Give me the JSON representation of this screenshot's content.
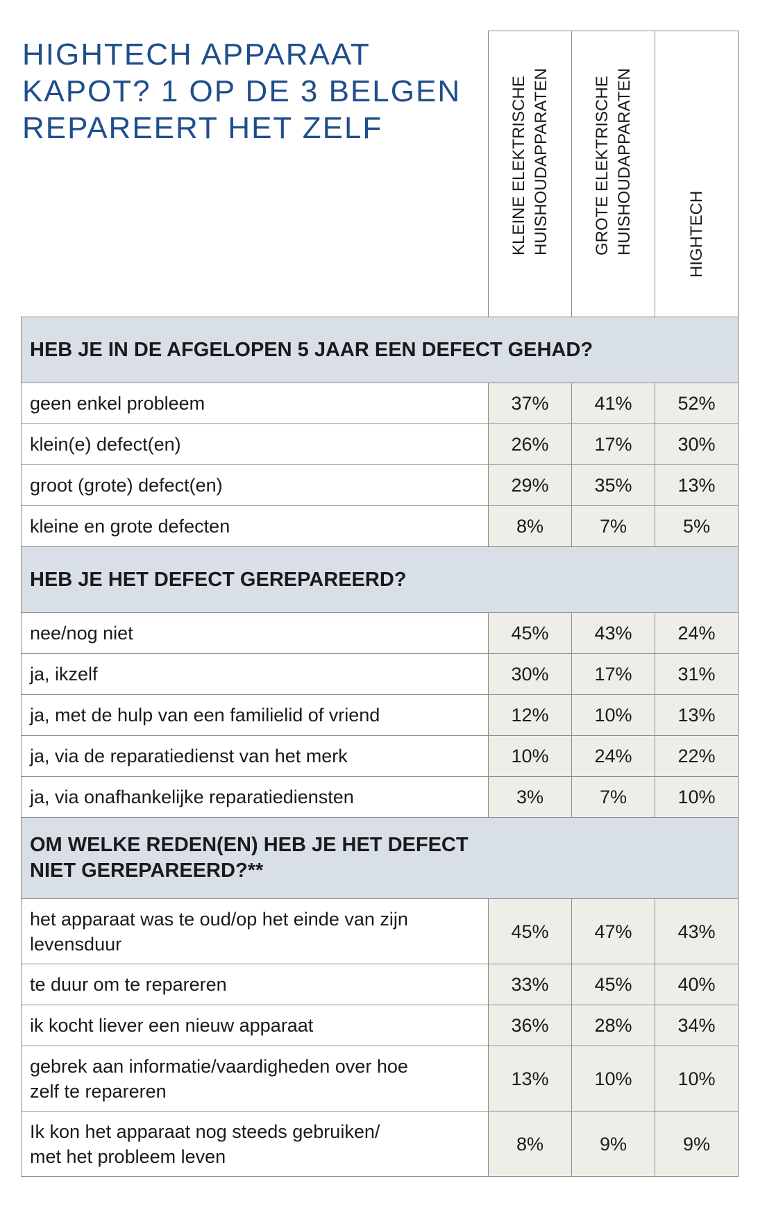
{
  "title_lines": [
    "HIGHTECH APPARAAT",
    "KAPOT? 1 OP DE 3 BELGEN",
    "REPAREERT HET ZELF"
  ],
  "columns": [
    {
      "lines": [
        "KLEINE ELEKTRISCHE",
        "HUISHOUDAPPARATEN"
      ]
    },
    {
      "lines": [
        "GROTE ELEKTRISCHE",
        "HUISHOUDAPPARATEN"
      ]
    },
    {
      "lines": [
        "HIGHTECH"
      ]
    }
  ],
  "sections": [
    {
      "title": "HEB JE IN DE AFGELOPEN 5 JAAR EEN DEFECT GEHAD?",
      "rows": [
        {
          "label": "geen enkel probleem",
          "values": [
            "37%",
            "41%",
            "52%"
          ]
        },
        {
          "label": "klein(e) defect(en)",
          "values": [
            "26%",
            "17%",
            "30%"
          ]
        },
        {
          "label": "groot (grote) defect(en)",
          "values": [
            "29%",
            "35%",
            "13%"
          ]
        },
        {
          "label": "kleine en grote defecten",
          "values": [
            "8%",
            "7%",
            "5%"
          ]
        }
      ]
    },
    {
      "title": "HEB JE HET DEFECT GEREPAREERD?",
      "rows": [
        {
          "label": "nee/nog niet",
          "values": [
            "45%",
            "43%",
            "24%"
          ]
        },
        {
          "label": "ja, ikzelf",
          "values": [
            "30%",
            "17%",
            "31%"
          ]
        },
        {
          "label": "ja, met de hulp van een familielid of vriend",
          "values": [
            "12%",
            "10%",
            "13%"
          ]
        },
        {
          "label": "ja, via de reparatiedienst van het merk",
          "values": [
            "10%",
            "24%",
            "22%"
          ]
        },
        {
          "label": "ja, via onafhankelijke reparatiediensten",
          "values": [
            "3%",
            "7%",
            "10%"
          ]
        }
      ]
    },
    {
      "title_lines": [
        "OM WELKE REDEN(EN) HEB JE HET DEFECT",
        "NIET GEREPAREERD?**"
      ],
      "rows": [
        {
          "label_lines": [
            "het apparaat was te oud/op het einde van zijn",
            "levensduur"
          ],
          "values": [
            "45%",
            "47%",
            "43%"
          ]
        },
        {
          "label": "te duur om te repareren",
          "values": [
            "33%",
            "45%",
            "40%"
          ]
        },
        {
          "label": "ik kocht liever een nieuw apparaat",
          "values": [
            "36%",
            "28%",
            "34%"
          ]
        },
        {
          "label_lines": [
            "gebrek aan informatie/vaardigheden over hoe",
            "zelf te repareren"
          ],
          "values": [
            "13%",
            "10%",
            "10%"
          ]
        },
        {
          "label_lines": [
            "Ik kon het apparaat nog steeds gebruiken/",
            "met het probleem leven"
          ],
          "values": [
            "8%",
            "9%",
            "9%"
          ]
        }
      ]
    }
  ]
}
